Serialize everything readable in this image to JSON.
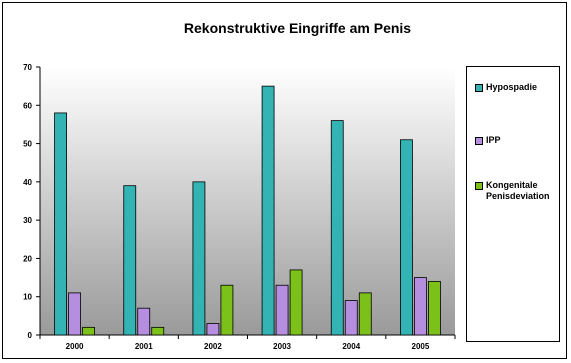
{
  "chart_data": {
    "type": "bar",
    "title": "Rekonstruktive Eingriffe am Penis",
    "xlabel": "",
    "ylabel": "",
    "categories": [
      "2000",
      "2001",
      "2002",
      "2003",
      "2004",
      "2005"
    ],
    "ylim": [
      0,
      70
    ],
    "yticks": [
      "0",
      "10",
      "20",
      "30",
      "40",
      "50",
      "60",
      "70"
    ],
    "grid": false,
    "legend_position": "right",
    "series": [
      {
        "name": "Hypospadie",
        "values": [
          58,
          39,
          40,
          65,
          56,
          51
        ],
        "color": "#33b3b3"
      },
      {
        "name": "IPP",
        "values": [
          11,
          7,
          3,
          13,
          9,
          15
        ],
        "color": "#b58ee0"
      },
      {
        "name": "Kongenitale Penisdeviation",
        "values": [
          2,
          2,
          13,
          17,
          11,
          14
        ],
        "color": "#7cc01a"
      }
    ]
  }
}
